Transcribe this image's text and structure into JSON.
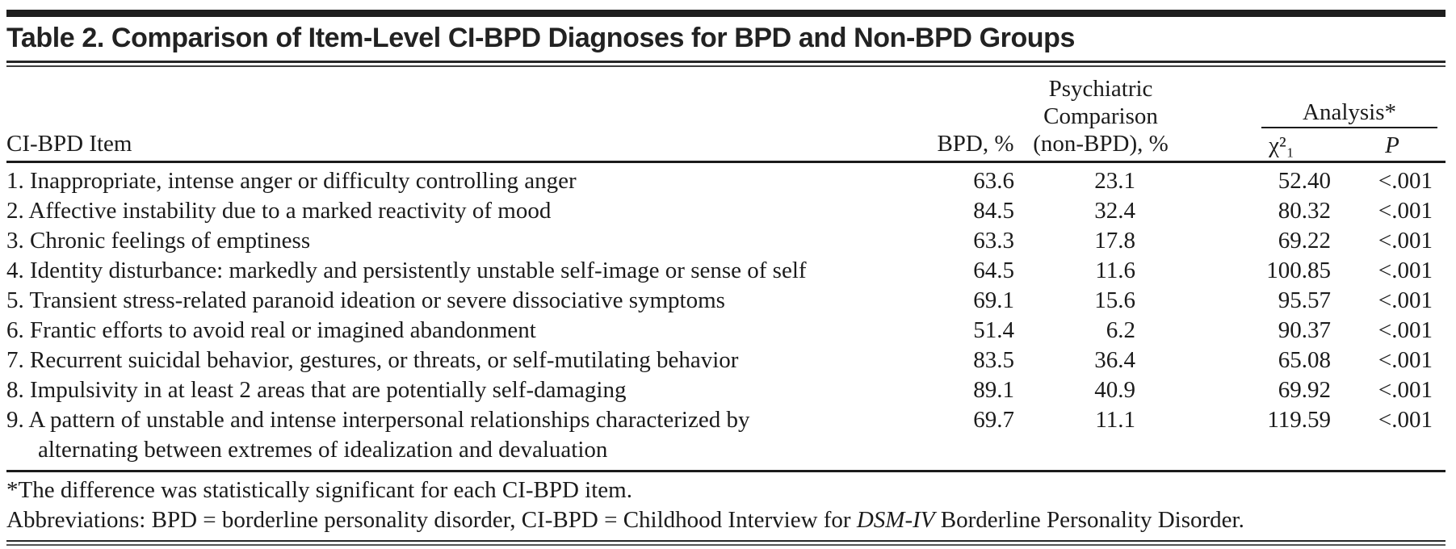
{
  "page": {
    "background": "#ffffff",
    "text_color": "#1b1b1b",
    "rule_color": "#1b1b1b"
  },
  "title": "Table 2. Comparison of Item-Level CI-BPD Diagnoses for BPD and Non-BPD Groups",
  "header": {
    "item": "CI-BPD Item",
    "bpd": "BPD, %",
    "comparison_line1": "Psychiatric",
    "comparison_line2": "Comparison",
    "comparison_line3": "(non-BPD), %",
    "analysis": "Analysis*",
    "chi_square": "χ²₁",
    "p": "P"
  },
  "rows": [
    {
      "item": "1. Inappropriate, intense anger or difficulty controlling anger",
      "item_line2": "",
      "bpd_pct": "63.6",
      "non_bpd_pct": "23.1",
      "chi_square": "52.40",
      "p": "<.001"
    },
    {
      "item": "2. Affective instability due to a marked reactivity of mood",
      "item_line2": "",
      "bpd_pct": "84.5",
      "non_bpd_pct": "32.4",
      "chi_square": "80.32",
      "p": "<.001"
    },
    {
      "item": "3. Chronic feelings of emptiness",
      "item_line2": "",
      "bpd_pct": "63.3",
      "non_bpd_pct": "17.8",
      "chi_square": "69.22",
      "p": "<.001"
    },
    {
      "item": "4. Identity disturbance: markedly and persistently unstable self-image or sense of self",
      "item_line2": "",
      "bpd_pct": "64.5",
      "non_bpd_pct": "11.6",
      "chi_square": "100.85",
      "p": "<.001"
    },
    {
      "item": "5. Transient stress-related paranoid ideation or severe dissociative symptoms",
      "item_line2": "",
      "bpd_pct": "69.1",
      "non_bpd_pct": "15.6",
      "chi_square": "95.57",
      "p": "<.001"
    },
    {
      "item": "6. Frantic efforts to avoid real or imagined abandonment",
      "item_line2": "",
      "bpd_pct": "51.4",
      "non_bpd_pct": "6.2",
      "chi_square": "90.37",
      "p": "<.001"
    },
    {
      "item": "7. Recurrent suicidal behavior, gestures, or threats, or self-mutilating behavior",
      "item_line2": "",
      "bpd_pct": "83.5",
      "non_bpd_pct": "36.4",
      "chi_square": "65.08",
      "p": "<.001"
    },
    {
      "item": "8. Impulsivity in at least 2 areas that are potentially self-damaging",
      "item_line2": "",
      "bpd_pct": "89.1",
      "non_bpd_pct": "40.9",
      "chi_square": "69.92",
      "p": "<.001"
    },
    {
      "item": "9. A pattern of unstable and intense interpersonal relationships characterized by",
      "item_line2": "alternating between extremes of idealization and devaluation",
      "bpd_pct": "69.7",
      "non_bpd_pct": "11.1",
      "chi_square": "119.59",
      "p": "<.001"
    }
  ],
  "footnotes": {
    "significance": "*The difference was statistically significant for each CI-BPD item.",
    "abbreviations_prefix": "Abbreviations: BPD = borderline personality disorder, CI-BPD = Childhood Interview for ",
    "abbreviations_italic": "DSM-IV",
    "abbreviations_suffix": " Borderline Personality Disorder."
  }
}
